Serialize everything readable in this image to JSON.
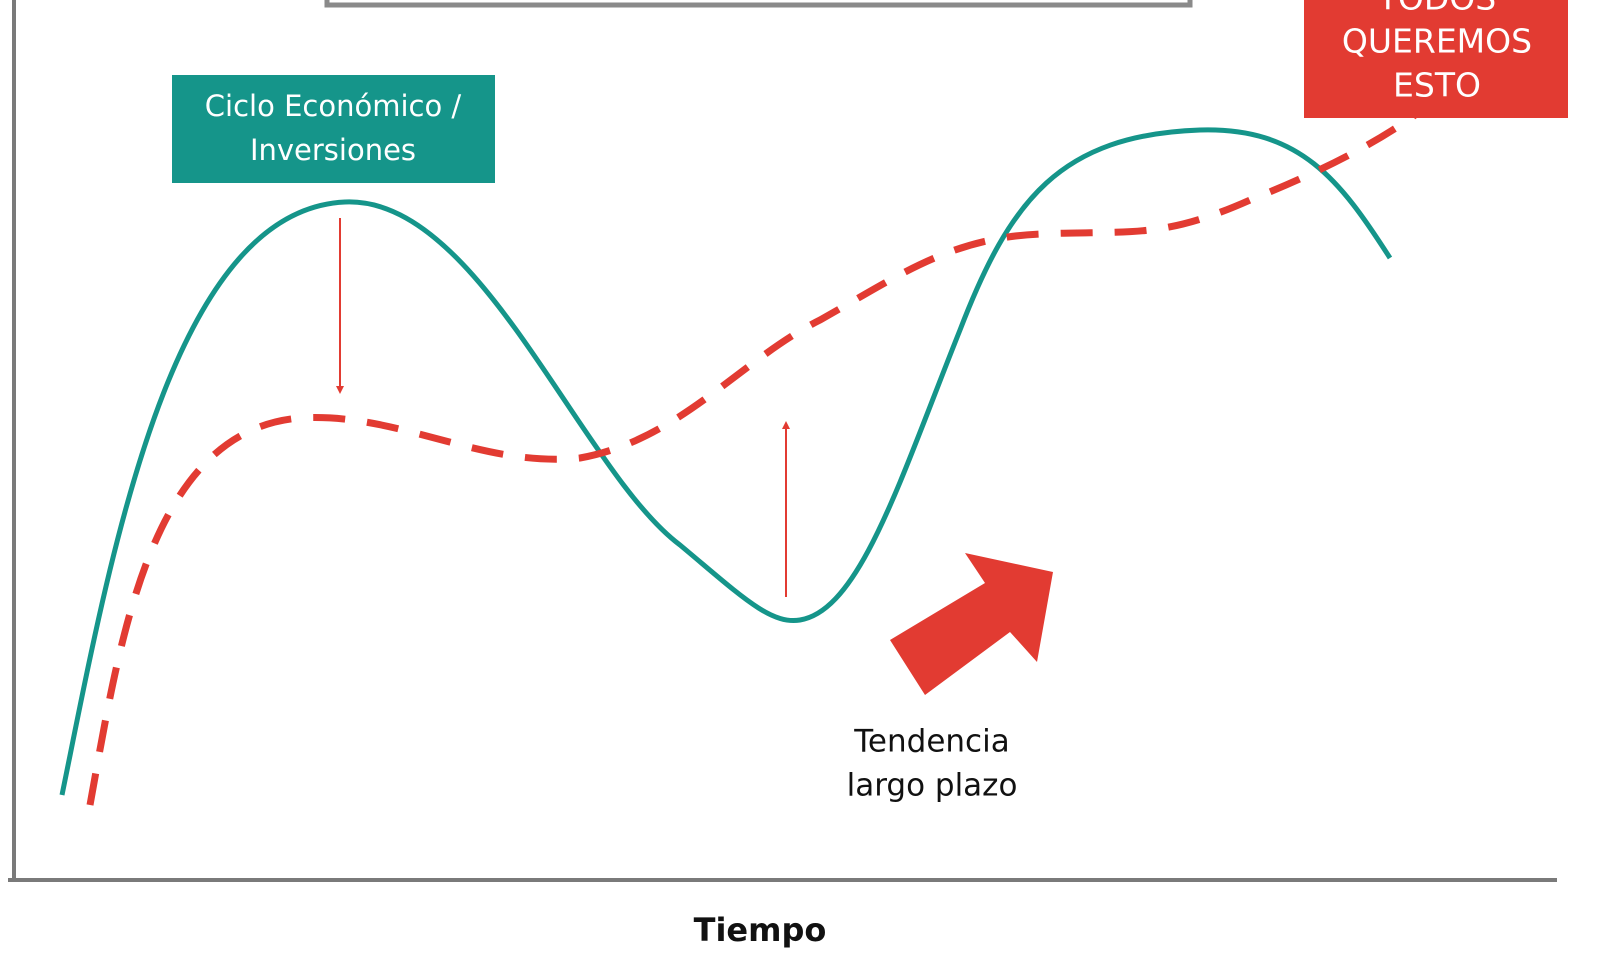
{
  "cycle_label": {
    "lines": [
      "Ciclo Económico /",
      "Inversiones"
    ]
  },
  "goal_label": {
    "lines": [
      "TODOS",
      "QUEREMOS",
      "ESTO"
    ]
  },
  "trend_label": {
    "lines": [
      "Tendencia",
      "largo plazo"
    ]
  },
  "x_axis_label": "Tiempo"
}
